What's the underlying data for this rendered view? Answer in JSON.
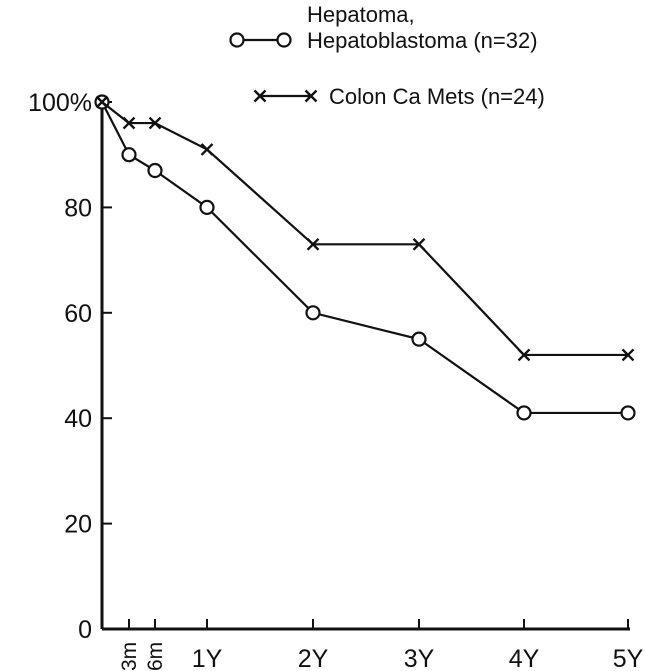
{
  "chart_data": {
    "type": "line",
    "title": "",
    "xlabel": "",
    "ylabel": "",
    "ylim": [
      0,
      100
    ],
    "grid": false,
    "legend_position": "top-right",
    "x_ticks": [
      {
        "label": "3m",
        "rotated": true
      },
      {
        "label": "6m",
        "rotated": true
      },
      {
        "label": "1Y",
        "rotated": false
      },
      {
        "label": "2Y",
        "rotated": false
      },
      {
        "label": "3Y",
        "rotated": false
      },
      {
        "label": "4Y",
        "rotated": false
      },
      {
        "label": "5Y",
        "rotated": false
      }
    ],
    "y_ticks": [
      {
        "value": 0,
        "label": "0"
      },
      {
        "value": 20,
        "label": "20"
      },
      {
        "value": 40,
        "label": "40"
      },
      {
        "value": 60,
        "label": "60"
      },
      {
        "value": 80,
        "label": "80"
      },
      {
        "value": 100,
        "label": "100%"
      }
    ],
    "series": [
      {
        "name": "Hepatoma, Hepatoblastoma (n=32)",
        "name_lines": [
          "Hepatoma,",
          "Hepatoblastoma (n=32)"
        ],
        "marker": "circle",
        "color": "#111111",
        "x": [
          "0",
          "3m",
          "6m",
          "1Y",
          "2Y",
          "3Y",
          "4Y",
          "5Y"
        ],
        "y": [
          100,
          90,
          87,
          80,
          60,
          55,
          41,
          41
        ]
      },
      {
        "name": "Colon Ca Mets (n=24)",
        "name_lines": [
          "Colon Ca Mets (n=24)"
        ],
        "marker": "x",
        "color": "#111111",
        "x": [
          "0",
          "3m",
          "6m",
          "1Y",
          "2Y",
          "3Y",
          "4Y",
          "5Y"
        ],
        "y": [
          100,
          96,
          96,
          91,
          73,
          73,
          52,
          52
        ]
      }
    ]
  }
}
